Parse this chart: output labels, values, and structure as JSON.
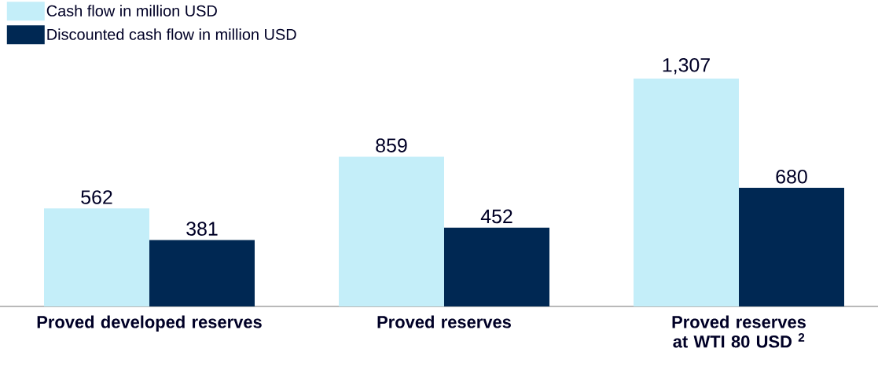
{
  "chart_data": {
    "type": "bar",
    "categories": [
      "Proved developed reserves",
      "Proved reserves",
      "Proved reserves at WTI 80 USD $^{2}$"
    ],
    "series": [
      {
        "name": "Cash flow in million USD",
        "color": "#c4eef9",
        "values": [
          562,
          859,
          1307
        ],
        "value_labels": [
          "562",
          "859",
          "1,307"
        ]
      },
      {
        "name": "Discounted cash flow in million USD",
        "color": "#002853",
        "values": [
          381,
          452,
          680
        ],
        "value_labels": [
          "381",
          "452",
          "680"
        ]
      }
    ],
    "legend": "top left"
  }
}
